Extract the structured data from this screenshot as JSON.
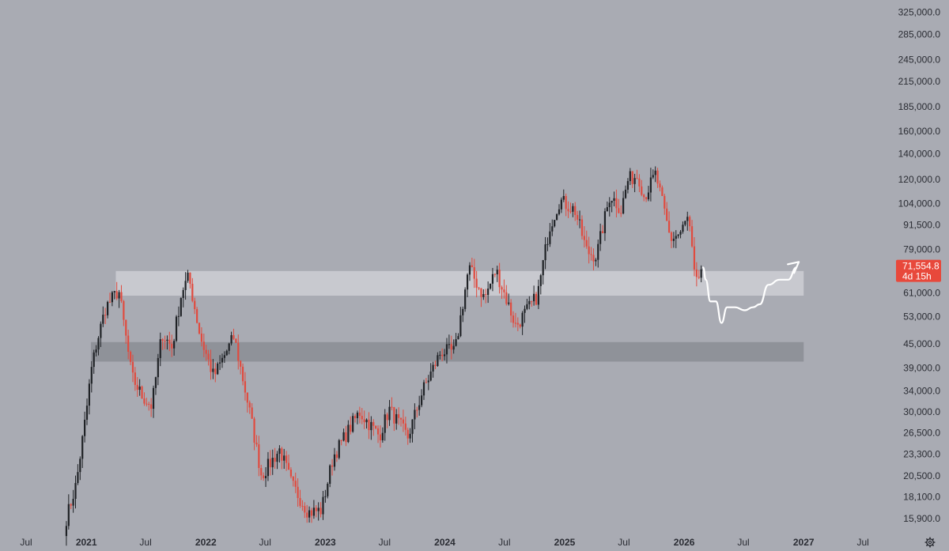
{
  "colors": {
    "background": "#a9abb3",
    "up_candle": "#1f2226",
    "down_candle": "#e04b3f",
    "resistance_zone": "#cfd1d6",
    "support_zone": "#8b8d94",
    "current_price_tag": "#e8483b",
    "projection_line": "#ffffff"
  },
  "price_tag": {
    "price": "71,554.8",
    "countdown": "4d 15h"
  },
  "toolbar": {
    "settings_icon": "gear-icon"
  },
  "chart_data": {
    "type": "candlestick",
    "scale": "log",
    "ylim": [
      14800,
      340000
    ],
    "xlim": [
      "2020-07-01",
      "2027-08-01"
    ],
    "y_ticks": [
      "325,000.0",
      "285,000.0",
      "245,000.0",
      "215,000.0",
      "185,000.0",
      "160,000.0",
      "140,000.0",
      "120,000.0",
      "104,000.0",
      "91,500.0",
      "79,000.0",
      "61,000.0",
      "53,000.0",
      "45,000.0",
      "39,000.0",
      "34,000.0",
      "30,000.0",
      "26,500.0",
      "23,300.0",
      "20,500.0",
      "18,100.0",
      "15,900.0"
    ],
    "x_ticks": [
      {
        "label": "Jul",
        "date": "2020-07-01",
        "year": false
      },
      {
        "label": "2021",
        "date": "2021-01-01",
        "year": true
      },
      {
        "label": "Jul",
        "date": "2021-07-01",
        "year": false
      },
      {
        "label": "2022",
        "date": "2022-01-01",
        "year": true
      },
      {
        "label": "Jul",
        "date": "2022-07-01",
        "year": false
      },
      {
        "label": "2023",
        "date": "2023-01-01",
        "year": true
      },
      {
        "label": "Jul",
        "date": "2023-07-01",
        "year": false
      },
      {
        "label": "2024",
        "date": "2024-01-01",
        "year": true
      },
      {
        "label": "Jul",
        "date": "2024-07-01",
        "year": false
      },
      {
        "label": "2025",
        "date": "2025-01-01",
        "year": true
      },
      {
        "label": "Jul",
        "date": "2025-07-01",
        "year": false
      },
      {
        "label": "2026",
        "date": "2026-01-01",
        "year": true
      },
      {
        "label": "Jul",
        "date": "2026-07-01",
        "year": false
      },
      {
        "label": "2027",
        "date": "2027-01-01",
        "year": true
      },
      {
        "label": "Jul",
        "date": "2027-07-01",
        "year": false
      }
    ],
    "price_path": [
      [
        "2020-11-01",
        15900
      ],
      [
        "2020-12-01",
        19500
      ],
      [
        "2021-01-01",
        30000
      ],
      [
        "2021-01-15",
        38000
      ],
      [
        "2021-02-01",
        45000
      ],
      [
        "2021-03-01",
        56000
      ],
      [
        "2021-04-10",
        62000
      ],
      [
        "2021-05-20",
        37000
      ],
      [
        "2021-06-20",
        33000
      ],
      [
        "2021-07-20",
        31000
      ],
      [
        "2021-08-20",
        48000
      ],
      [
        "2021-09-20",
        44000
      ],
      [
        "2021-10-20",
        62000
      ],
      [
        "2021-11-10",
        67000
      ],
      [
        "2021-12-15",
        47000
      ],
      [
        "2022-01-25",
        37000
      ],
      [
        "2022-03-28",
        47000
      ],
      [
        "2022-05-15",
        30000
      ],
      [
        "2022-06-20",
        20500
      ],
      [
        "2022-08-15",
        24000
      ],
      [
        "2022-09-20",
        19500
      ],
      [
        "2022-11-10",
        16500
      ],
      [
        "2022-12-20",
        16700
      ],
      [
        "2023-01-25",
        23000
      ],
      [
        "2023-04-15",
        30000
      ],
      [
        "2023-06-15",
        26000
      ],
      [
        "2023-07-15",
        30500
      ],
      [
        "2023-09-10",
        25800
      ],
      [
        "2023-10-25",
        34000
      ],
      [
        "2023-12-20",
        43000
      ],
      [
        "2024-02-01",
        43000
      ],
      [
        "2024-03-14",
        71000
      ],
      [
        "2024-05-01",
        59000
      ],
      [
        "2024-06-05",
        70000
      ],
      [
        "2024-08-05",
        50000
      ],
      [
        "2024-10-10",
        60000
      ],
      [
        "2024-11-15",
        90000
      ],
      [
        "2024-12-17",
        106000
      ],
      [
        "2025-02-01",
        100000
      ],
      [
        "2025-03-10",
        78000
      ],
      [
        "2025-04-08",
        76000
      ],
      [
        "2025-05-20",
        110000
      ],
      [
        "2025-06-22",
        100000
      ],
      [
        "2025-07-14",
        120000
      ],
      [
        "2025-08-14",
        123000
      ],
      [
        "2025-09-01",
        108000
      ],
      [
        "2025-10-06",
        124000
      ],
      [
        "2025-11-20",
        84000
      ],
      [
        "2025-12-20",
        87000
      ],
      [
        "2026-01-14",
        96000
      ],
      [
        "2026-02-05",
        63000
      ],
      [
        "2026-02-25",
        71554.8
      ]
    ],
    "zones": [
      {
        "name": "resistance",
        "low": 60000,
        "high": 69500,
        "start": "2021-04-01",
        "end": "2027-01-01"
      },
      {
        "name": "support",
        "low": 40500,
        "high": 45500,
        "start": "2021-01-15",
        "end": "2027-01-01"
      }
    ],
    "projection": [
      [
        "2026-02-28",
        71000
      ],
      [
        "2026-03-08",
        66000
      ],
      [
        "2026-03-22",
        58000
      ],
      [
        "2026-04-08",
        58000
      ],
      [
        "2026-04-25",
        51000
      ],
      [
        "2026-05-12",
        56000
      ],
      [
        "2026-06-05",
        56000
      ],
      [
        "2026-07-05",
        55000
      ],
      [
        "2026-07-30",
        56000
      ],
      [
        "2026-08-20",
        57000
      ],
      [
        "2026-09-15",
        64000
      ],
      [
        "2026-10-20",
        66000
      ],
      [
        "2026-11-15",
        66000
      ],
      [
        "2026-12-10",
        71000
      ]
    ]
  }
}
